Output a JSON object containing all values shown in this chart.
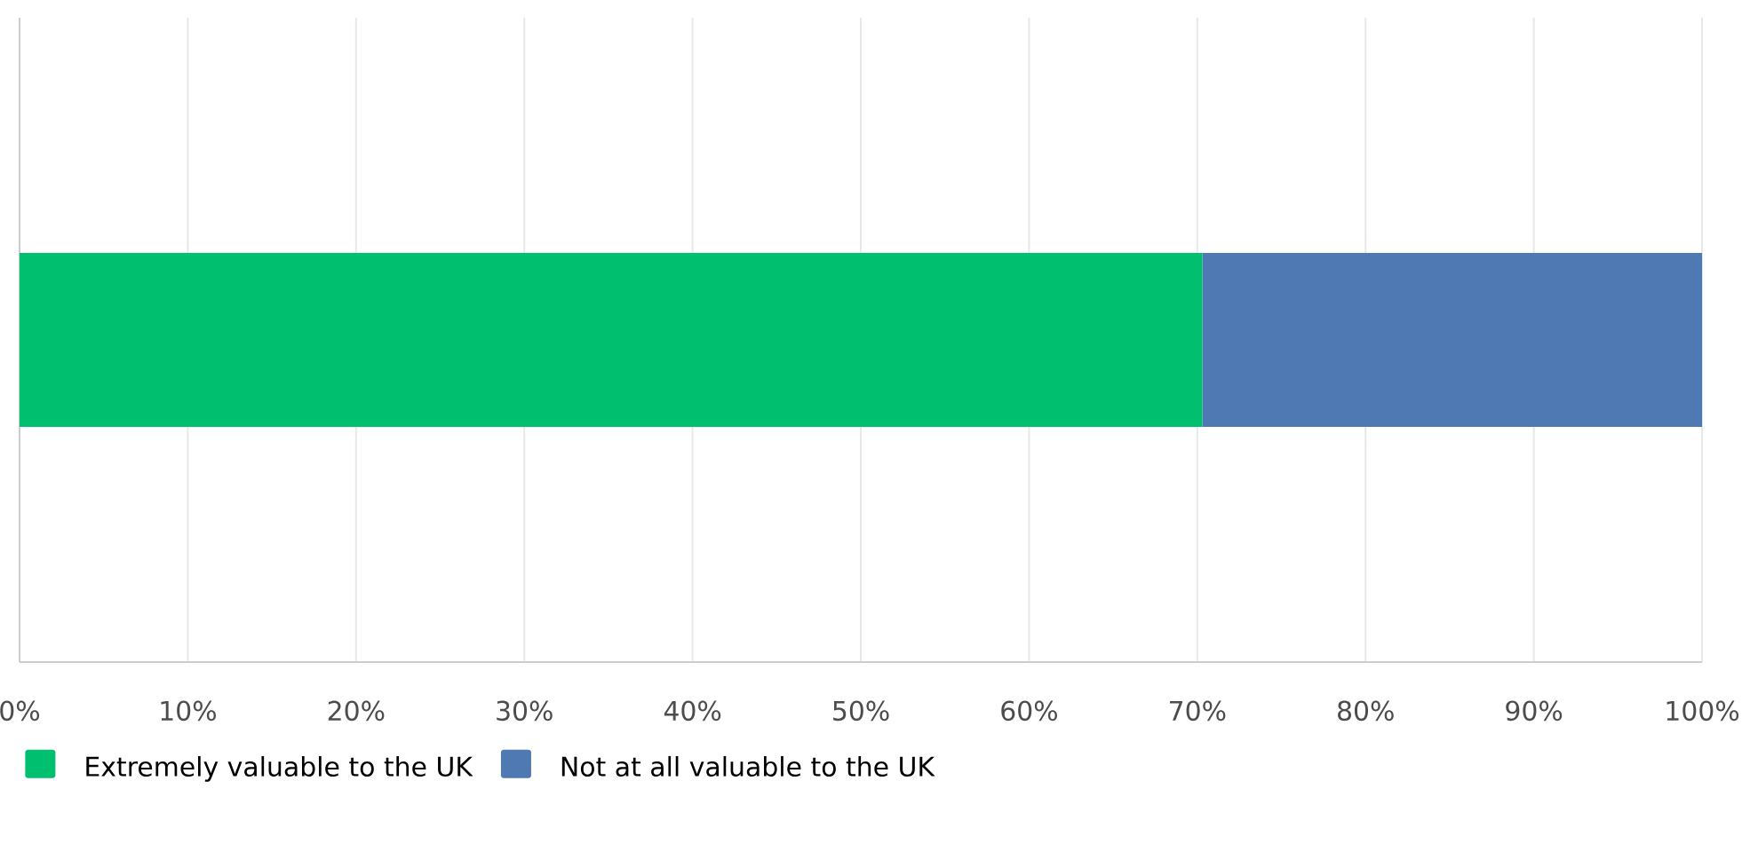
{
  "chart_data": {
    "type": "bar",
    "orientation": "horizontal",
    "stacked": true,
    "categories": [
      null
    ],
    "series": [
      {
        "name": "Extremely valuable to the UK",
        "color": "#00bf6f",
        "values": [
          70.3
        ]
      },
      {
        "name": "Not at all valuable to the UK",
        "color": "#4e79b3",
        "values": [
          29.7
        ]
      }
    ],
    "xlim": [
      0,
      100
    ],
    "xticks": [
      {
        "value": 0,
        "label": "0%"
      },
      {
        "value": 10,
        "label": "10%"
      },
      {
        "value": 20,
        "label": "20%"
      },
      {
        "value": 30,
        "label": "30%"
      },
      {
        "value": 40,
        "label": "40%"
      },
      {
        "value": 50,
        "label": "50%"
      },
      {
        "value": 60,
        "label": "60%"
      },
      {
        "value": 70,
        "label": "70%"
      },
      {
        "value": 80,
        "label": "80%"
      },
      {
        "value": 90,
        "label": "90%"
      },
      {
        "value": 100,
        "label": "100%"
      }
    ],
    "grid": "x",
    "legend": "bottom left"
  }
}
